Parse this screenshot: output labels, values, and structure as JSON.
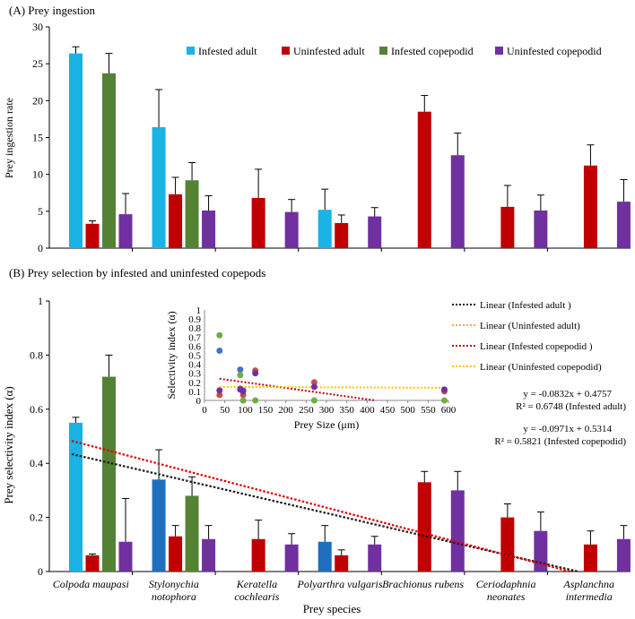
{
  "colors": {
    "infested_adult": "#1ab3e6",
    "uninfested_adult": "#c00000",
    "infested_copepodid": "#548235",
    "uninfested_copepodid": "#7030a0",
    "dark_blue": "#1f6fbf",
    "inset_blue": "#4472c4",
    "inset_red": "#c0504d",
    "inset_green": "#70ad47",
    "inset_purple": "#7030a0"
  },
  "chart_data": [
    {
      "type": "bar",
      "panel_label": "(A)",
      "title": "Prey ingestion",
      "xlabel": "",
      "ylabel": "Prey ingestion rate",
      "ylim": [
        0,
        30
      ],
      "yticks": [
        "0",
        "5",
        "10",
        "15",
        "20",
        "25",
        "30"
      ],
      "categories": [
        "Colpoda maupasi",
        "Stylonychia notophora",
        "Keratella cochlearis",
        "Polyarthra vulgaris",
        "Brachionus rubens",
        "Ceriodaphnia neonates",
        "Asplanchna intermedia"
      ],
      "legend": [
        "Infested adult",
        "Uninfested adult",
        "Infested copepodid",
        "Uninfested copepodid"
      ],
      "series": [
        {
          "name": "Infested adult",
          "values": [
            26.4,
            16.4,
            null,
            5.2,
            null,
            null,
            null
          ],
          "errors": [
            0.9,
            5.1,
            null,
            2.8,
            null,
            null,
            null
          ]
        },
        {
          "name": "Uninfested adult",
          "values": [
            3.3,
            7.3,
            6.8,
            3.4,
            18.5,
            5.6,
            11.2
          ],
          "errors": [
            0.4,
            2.3,
            3.9,
            1.1,
            2.2,
            2.9,
            2.8
          ]
        },
        {
          "name": "Infested copepodid",
          "values": [
            23.7,
            9.2,
            null,
            null,
            null,
            null,
            null
          ],
          "errors": [
            2.7,
            2.4,
            null,
            null,
            null,
            null,
            null
          ]
        },
        {
          "name": "Uninfested copepodid",
          "values": [
            4.6,
            5.1,
            4.9,
            4.3,
            12.6,
            5.1,
            6.3
          ],
          "errors": [
            2.8,
            2.0,
            1.7,
            1.2,
            3.0,
            2.1,
            3.0
          ]
        }
      ]
    },
    {
      "type": "bar",
      "panel_label": "(B)",
      "title": "Prey selection by infested and uninfested copepods",
      "xlabel": "Prey species",
      "ylabel": "Prey selectivity index (α)",
      "ylim": [
        0,
        1
      ],
      "yticks": [
        "0",
        "0.2",
        "0.4",
        "0.6",
        "0.8",
        "1"
      ],
      "categories": [
        {
          "line1": "Colpoda maupasi",
          "line2": ""
        },
        {
          "line1": "Stylonychia",
          "line2": "notophora"
        },
        {
          "line1": "Keratella",
          "line2": "cochlearis"
        },
        {
          "line1": "Polyarthra vulgaris",
          "line2": ""
        },
        {
          "line1": "Brachionus rubens",
          "line2": ""
        },
        {
          "line1": "Ceriodaphnia",
          "line2": "neonates"
        },
        {
          "line1": "Asplanchna",
          "line2": "intermedia"
        }
      ],
      "series": [
        {
          "name": "Infested adult",
          "values": [
            0.55,
            0.34,
            null,
            0.11,
            null,
            null,
            null
          ],
          "errors": [
            0.02,
            0.11,
            null,
            0.06,
            null,
            null,
            null
          ]
        },
        {
          "name": "Uninfested adult",
          "values": [
            0.06,
            0.13,
            0.12,
            0.06,
            0.33,
            0.2,
            0.1
          ],
          "errors": [
            0.005,
            0.04,
            0.07,
            0.02,
            0.04,
            0.05,
            0.05
          ]
        },
        {
          "name": "Infested copepodid",
          "values": [
            0.72,
            0.28,
            null,
            null,
            null,
            null,
            null
          ],
          "errors": [
            0.08,
            0.07,
            null,
            null,
            null,
            null,
            null
          ]
        },
        {
          "name": "Uninfested copepodid",
          "values": [
            0.11,
            0.12,
            0.1,
            0.1,
            0.3,
            0.15,
            0.12
          ],
          "errors": [
            0.16,
            0.05,
            0.04,
            0.03,
            0.07,
            0.07,
            0.05
          ]
        }
      ],
      "trendlines": [
        {
          "name": "Linear (Infested adult )",
          "color": "#1a1a1a",
          "x_from": 0.5,
          "x_to": 6.6,
          "slope": -0.0832,
          "intercept": 0.4757
        },
        {
          "name": "Linear (Infested copepodid )",
          "color": "#e00000",
          "x_from": 0.5,
          "x_to": 6.5,
          "slope": -0.0971,
          "intercept": 0.5314
        }
      ],
      "legend": [
        {
          "label": "Linear (Infested adult )",
          "color": "#1a1a1a"
        },
        {
          "label": "Linear (Uninfested adult)",
          "color": "#f4a460"
        },
        {
          "label": "Linear (Infested copepodid )",
          "color": "#c00000"
        },
        {
          "label": "Linear (Uninfested copepodid)",
          "color": "#ffc000"
        }
      ],
      "equations": [
        {
          "line1": "y = -0.0832x + 0.4757",
          "line2": "R² = 0.6748 (Infested adult)"
        },
        {
          "line1": "y = -0.0971x + 0.5314",
          "line2": "R² = 0.5821 (Infested copepodid)"
        }
      ]
    },
    {
      "type": "scatter",
      "inset": true,
      "xlabel": "Prey Size (μm)",
      "ylabel": "Selectivity index (α)",
      "xlim": [
        0,
        600
      ],
      "ylim": [
        0,
        1
      ],
      "xticks": [
        "0",
        "50",
        "100",
        "150",
        "200",
        "250",
        "300",
        "350",
        "400",
        "450",
        "500",
        "550",
        "600"
      ],
      "yticks": [
        "0",
        "0.1",
        "0.2",
        "0.3",
        "0.4",
        "0.5",
        "0.6",
        "0.7",
        "0.8",
        "0.9",
        "1"
      ],
      "series": [
        {
          "name": "Infested adult",
          "color": "#4472c4",
          "points": [
            [
              37,
              0.55
            ],
            [
              88,
              0.34
            ],
            [
              95,
              0.11
            ]
          ]
        },
        {
          "name": "Uninfested adult",
          "color": "#c0504d",
          "points": [
            [
              37,
              0.06
            ],
            [
              88,
              0.13
            ],
            [
              95,
              0.06
            ],
            [
              125,
              0.33
            ],
            [
              270,
              0.2
            ],
            [
              590,
              0.1
            ]
          ]
        },
        {
          "name": "Infested copepodid",
          "color": "#70ad47",
          "points": [
            [
              37,
              0.72
            ],
            [
              88,
              0.28
            ],
            [
              95,
              0.0
            ],
            [
              125,
              0.0
            ],
            [
              270,
              0.0
            ],
            [
              590,
              0.0
            ]
          ]
        },
        {
          "name": "Uninfested copepodid",
          "color": "#7030a0",
          "points": [
            [
              37,
              0.11
            ],
            [
              88,
              0.12
            ],
            [
              95,
              0.1
            ],
            [
              125,
              0.3
            ],
            [
              270,
              0.15
            ],
            [
              590,
              0.12
            ]
          ]
        }
      ],
      "trendlines": [
        {
          "color": "#c00000",
          "x": [
            37,
            420
          ],
          "y": [
            0.24,
            0.0
          ]
        },
        {
          "color": "#ffc000",
          "x": [
            37,
            590
          ],
          "y": [
            0.15,
            0.14
          ]
        }
      ]
    }
  ]
}
